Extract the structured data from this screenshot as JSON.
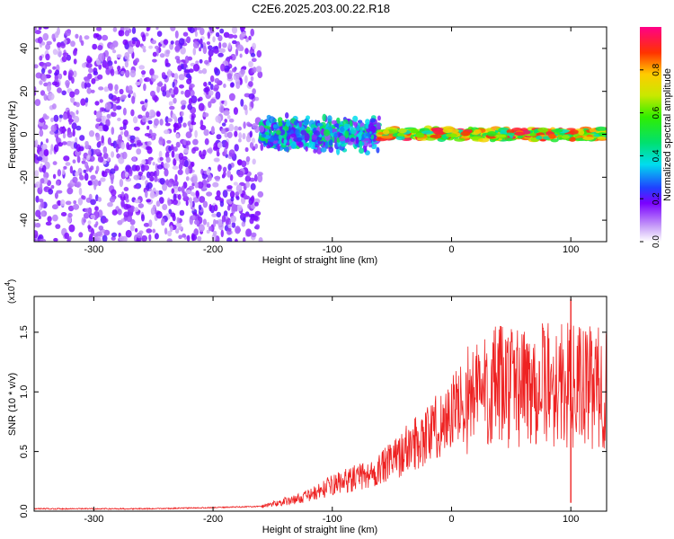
{
  "title": "C2E6.2025.203.00.22.R18",
  "chart_data": [
    {
      "type": "heatmap",
      "xlabel": "Height of straight line (km)",
      "ylabel": "Frequency (Hz)",
      "xlim": [
        -350,
        130
      ],
      "ylim": [
        -50,
        50
      ],
      "xticks": [
        -300,
        -200,
        -100,
        0,
        100
      ],
      "yticks": [
        -40,
        -20,
        0,
        20,
        40
      ],
      "colorbar": {
        "label": "Normalized spectral amplitude",
        "range": [
          0,
          1
        ],
        "ticks": [
          "0.0",
          "0.2",
          "0.4",
          "0.6",
          "0.8"
        ]
      },
      "description_bands": [
        {
          "x_range": [
            -350,
            -160
          ],
          "freq_range": [
            -50,
            50
          ],
          "amplitude_level": 0.15
        },
        {
          "x_range": [
            -160,
            -60
          ],
          "freq_range": [
            -10,
            10
          ],
          "amplitude_level": 0.3
        },
        {
          "x_range": [
            -60,
            130
          ],
          "freq_range": [
            -3,
            3
          ],
          "amplitude_level": 0.85
        }
      ]
    },
    {
      "type": "line",
      "xlabel": "Height of straight line (km)",
      "ylabel": "SNR (10 * v/v)",
      "multiplier_label": "(x10",
      "multiplier_exp": "4",
      "xlim": [
        -350,
        130
      ],
      "ylim": [
        0,
        1.8
      ],
      "xticks": [
        -300,
        -200,
        -100,
        0,
        100
      ],
      "yticks": [
        "0.0",
        "0.5",
        "1.0",
        "1.5"
      ],
      "color": "#ee2222",
      "series": [
        {
          "x": [
            -350,
            -300,
            -250,
            -200,
            -160,
            -150,
            -140,
            -130,
            -120,
            -110,
            -100,
            -90,
            -80,
            -70,
            -60,
            -50,
            -40,
            -30,
            -20,
            -10,
            0,
            10,
            20,
            30,
            40,
            50,
            60,
            70,
            80,
            90,
            100,
            110,
            120,
            130
          ],
          "y": [
            0.02,
            0.02,
            0.02,
            0.03,
            0.04,
            0.06,
            0.08,
            0.1,
            0.13,
            0.17,
            0.22,
            0.25,
            0.28,
            0.3,
            0.35,
            0.42,
            0.5,
            0.58,
            0.65,
            0.72,
            0.82,
            0.92,
            0.98,
            1.02,
            1.04,
            1.05,
            1.06,
            1.06,
            1.07,
            1.06,
            1.05,
            1.04,
            1.03,
            1.03
          ],
          "spikes": [
            {
              "x": 100,
              "y": 1.78
            },
            {
              "x": 100,
              "y": 0.07
            }
          ]
        }
      ]
    }
  ]
}
